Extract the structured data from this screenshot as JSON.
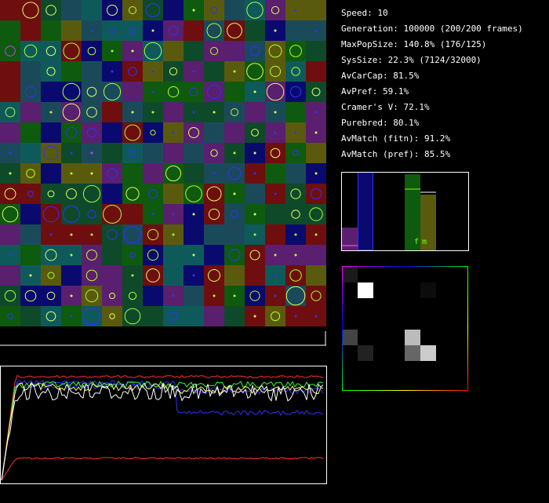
{
  "stats": [
    "Speed: 10",
    "Generation: 100000 (200/200 frames)",
    "MaxPopSize: 140.8% (176/125)",
    "SysSize: 22.3% (7124/32000)",
    "AvCarCap: 81.5%",
    "AvPref: 59.1%",
    "Cramer's V: 72.1%",
    "Purebred: 80.1%",
    "AvMatch (fitn): 91.2%",
    "AvMatch (pref): 85.5%"
  ],
  "bar_panel": {
    "labels": [
      "f",
      "m"
    ]
  }
}
